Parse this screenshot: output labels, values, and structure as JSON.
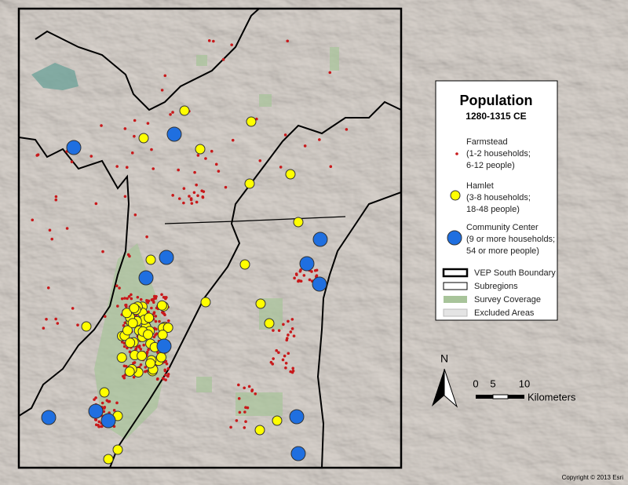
{
  "legend": {
    "title": "Population",
    "subtitle": "1280-1315 CE",
    "sites": [
      {
        "label": "Farmstead",
        "lines": [
          "(1-2 households;",
          "6-12 people)"
        ]
      },
      {
        "label": "Hamlet",
        "lines": [
          "(3-8 households;",
          "18-48 people)"
        ]
      },
      {
        "label": "Community Center",
        "lines": [
          "(9 or more households;",
          "54 or more people)"
        ]
      }
    ],
    "areas": [
      "VEP South Boundary",
      "Subregions",
      "Survey Coverage",
      "Excluded Areas"
    ]
  },
  "north_arrow": "N",
  "scale_bar": {
    "ticks": [
      "0",
      "5",
      "10"
    ],
    "unit": "Kilometers"
  },
  "copyright": "Copyright © 2013 Esri"
}
